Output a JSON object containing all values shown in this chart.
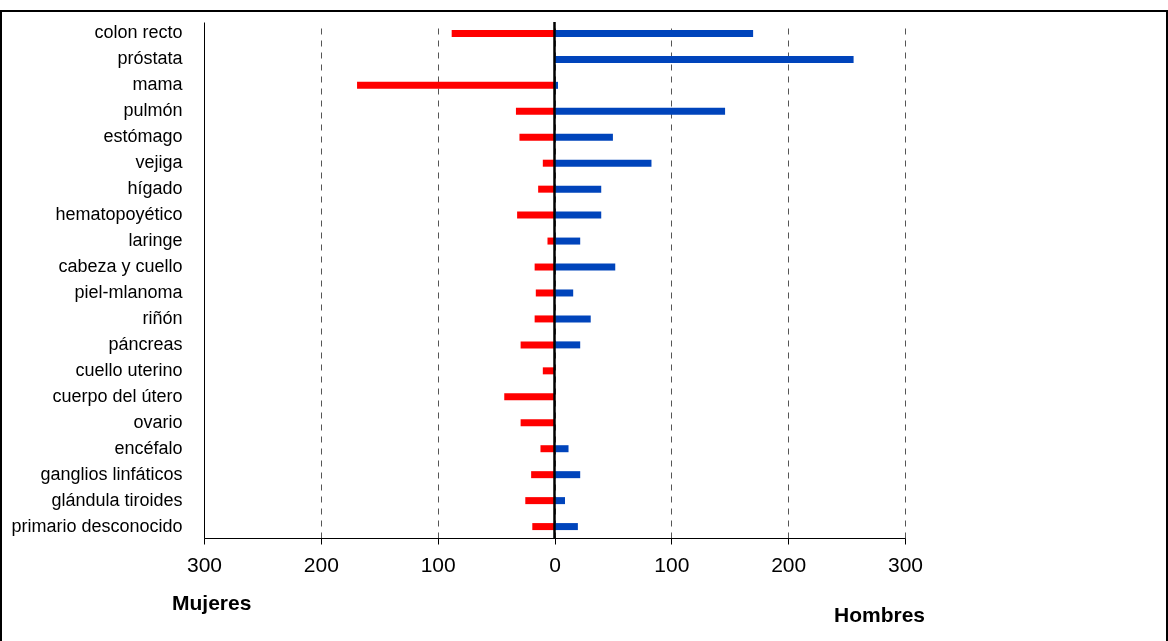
{
  "chart_data": {
    "type": "bar",
    "orientation": "horizontal",
    "stacked": true,
    "categories": [
      "colon recto",
      "próstata",
      "mama",
      "pulmón",
      "estómago",
      "vejiga",
      "hígado",
      "hematopoyético",
      "laringe",
      "cabeza y cuello",
      "piel-mlanoma",
      "riñón",
      "páncreas",
      "cuello uterino",
      "cuerpo del útero",
      "ovario",
      "encéfalo",
      "ganglios linfáticos",
      "glándula tiroides",
      "primario desconocido"
    ],
    "series": [
      {
        "color": "#ff0000",
        "values": [
          -88,
          null,
          -169,
          -33,
          -30,
          -10,
          -14,
          -32,
          -6,
          -17,
          -16,
          -17,
          -29,
          -10,
          -43,
          -29,
          -12,
          -20,
          -25,
          -19
        ]
      },
      {
        "color": "#0044bb",
        "values": [
          170,
          256,
          3,
          146,
          50,
          83,
          40,
          40,
          22,
          52,
          16,
          31,
          22,
          null,
          null,
          null,
          12,
          22,
          9,
          20
        ]
      }
    ],
    "xlim": [
      -300,
      300
    ],
    "xticks": [
      {
        "value": -300,
        "label": "300"
      },
      {
        "value": -200,
        "label": "200"
      },
      {
        "value": -100,
        "label": "100"
      },
      0,
      100,
      200,
      300
    ],
    "grid": "x",
    "ref_lines": [
      {
        "axis": "x",
        "value": 0
      }
    ],
    "annotations": [
      "Mujeres",
      "Hombres"
    ]
  }
}
